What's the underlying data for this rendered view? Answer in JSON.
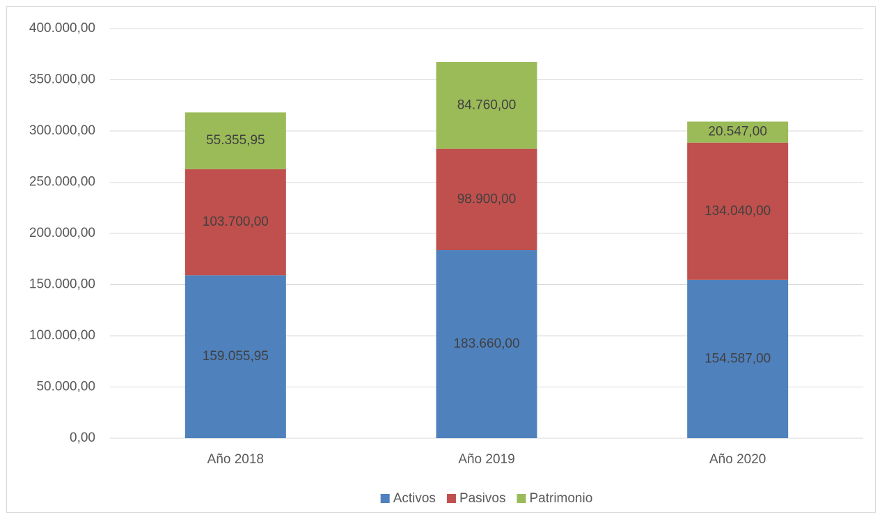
{
  "chart_data": {
    "type": "stacked_bar",
    "categories": [
      "Año 2018",
      "Año 2019",
      "Año 2020"
    ],
    "series": [
      {
        "name": "Activos",
        "color": "#4f81bd",
        "values": [
          159055.95,
          183660,
          154587
        ],
        "value_labels": [
          "159.055,95",
          "183.660,00",
          "154.587,00"
        ]
      },
      {
        "name": "Pasivos",
        "color": "#c0504d",
        "values": [
          103700,
          98900,
          134040
        ],
        "value_labels": [
          "103.700,00",
          "98.900,00",
          "134.040,00"
        ]
      },
      {
        "name": "Patrimonio",
        "color": "#9bbb59",
        "values": [
          55355.95,
          84760,
          20547
        ],
        "value_labels": [
          "55.355,95",
          "84.760,00",
          "20.547,00"
        ]
      }
    ],
    "ylim": [
      0,
      400000
    ],
    "yticks": [
      {
        "value": 0,
        "label": "0,00"
      },
      {
        "value": 50000,
        "label": "50.000,00"
      },
      {
        "value": 100000,
        "label": "100.000,00"
      },
      {
        "value": 150000,
        "label": "150.000,00"
      },
      {
        "value": 200000,
        "label": "200.000,00"
      },
      {
        "value": 250000,
        "label": "250.000,00"
      },
      {
        "value": 300000,
        "label": "300.000,00"
      },
      {
        "value": 350000,
        "label": "350.000,00"
      },
      {
        "value": 400000,
        "label": "400.000,00"
      }
    ],
    "grid": true,
    "legend": "bottom"
  }
}
